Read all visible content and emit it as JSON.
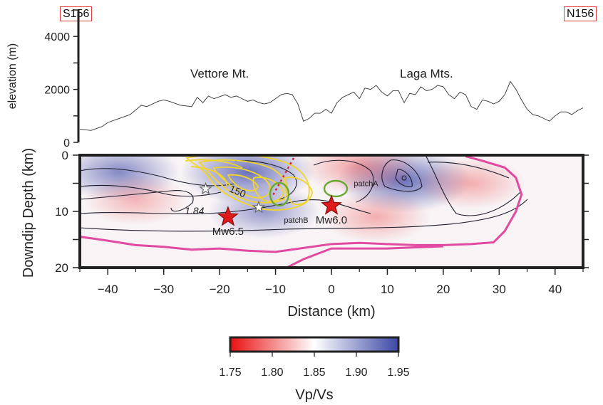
{
  "section": {
    "left_label": "S156",
    "right_label": "N156"
  },
  "chart_data": [
    {
      "type": "line",
      "ylabel": "elevation (m)",
      "ylim": [
        0,
        5000
      ],
      "xlim": [
        -45,
        45
      ],
      "yticks": [
        0,
        2000,
        4000
      ],
      "grid": false,
      "annotations": [
        {
          "text": "Vettore Mt.",
          "x": -20
        },
        {
          "text": "Laga Mts.",
          "x": 17
        }
      ],
      "x": [
        -45,
        -43,
        -41,
        -40,
        -38,
        -36,
        -34,
        -33,
        -31,
        -30,
        -29,
        -27,
        -25,
        -24,
        -23,
        -22,
        -21,
        -19,
        -18,
        -17,
        -16,
        -15,
        -14,
        -13,
        -12,
        -11,
        -9,
        -8,
        -7,
        -6,
        -5,
        -4,
        -3,
        -2,
        -1,
        0,
        1,
        2,
        3,
        4,
        5,
        6,
        7,
        8,
        9,
        10,
        11,
        12,
        13,
        14,
        15,
        16,
        17,
        18,
        19,
        20,
        21,
        22,
        23,
        24,
        25,
        26,
        27,
        28,
        29,
        30,
        31,
        32,
        33,
        34,
        35,
        36,
        37,
        38,
        39,
        40,
        41,
        42,
        43,
        44,
        45
      ],
      "y": [
        500,
        450,
        600,
        750,
        900,
        1050,
        1400,
        1350,
        1550,
        1600,
        1550,
        1400,
        1350,
        1700,
        1500,
        1750,
        1650,
        1800,
        1700,
        1750,
        1650,
        1550,
        1600,
        1500,
        1450,
        1500,
        1800,
        1850,
        1800,
        1450,
        800,
        900,
        1100,
        1100,
        1250,
        1100,
        1500,
        1700,
        1800,
        1900,
        1650,
        2050,
        2000,
        2150,
        1900,
        1750,
        1950,
        1950,
        1500,
        1850,
        1800,
        2100,
        1950,
        2000,
        2150,
        2100,
        1800,
        1650,
        1900,
        1800,
        1350,
        1250,
        1600,
        1550,
        1450,
        1550,
        1800,
        2300,
        2000,
        1600,
        1250,
        1050,
        1000,
        900,
        800,
        1000,
        1150,
        1150,
        1050,
        1200,
        1300
      ]
    },
    {
      "type": "heatmap",
      "xlabel": "Distance (km)",
      "ylabel": "Downdip Depth (km)",
      "xlim": [
        -45,
        45
      ],
      "ylim": [
        20,
        0
      ],
      "xticks": [
        -40,
        -30,
        -20,
        -10,
        0,
        10,
        20,
        30,
        40
      ],
      "yticks": [
        0,
        10,
        20
      ],
      "grid": false,
      "colorbar": {
        "label": "Vp/Vs",
        "min": 1.75,
        "max": 1.95,
        "ticks": [
          "1.75",
          "1.80",
          "1.85",
          "1.90",
          "1.95"
        ],
        "colors": [
          "#e81010",
          "#ffffff",
          "#3c47a6"
        ]
      },
      "vp_vs_anomalies": [
        {
          "x": -15,
          "y": 3,
          "value": 1.93
        },
        {
          "x": -38,
          "y": 3,
          "value": 1.9
        },
        {
          "x": 13,
          "y": 4.5,
          "value": 1.93
        },
        {
          "x": -35,
          "y": 8,
          "value": 1.84
        },
        {
          "x": 5,
          "y": 2,
          "value": 1.81
        },
        {
          "x": 25,
          "y": 5,
          "value": 1.83
        },
        {
          "x": 8,
          "y": 11,
          "value": 1.83
        },
        {
          "x": -12,
          "y": 10,
          "value": 1.88
        }
      ],
      "contour_labels": [
        {
          "text": "1.84",
          "x": -24.5,
          "y": 10.5
        },
        {
          "text": "150",
          "x": -17,
          "y": 7
        }
      ],
      "patches": [
        {
          "text": "patchA",
          "x": 4,
          "y": 5.5
        },
        {
          "text": "patchB",
          "x": -8.5,
          "y": 12
        }
      ],
      "events": [
        {
          "text": "Mw6.5",
          "x": -18.5,
          "y": 11
        },
        {
          "text": "Mw6.0",
          "x": 0,
          "y": 9
        }
      ],
      "aftershocks": [
        {
          "x": -22.5,
          "y": 6
        },
        {
          "x": -13,
          "y": 9.3
        }
      ],
      "pink_contour": [
        [
          -45,
          14.5
        ],
        [
          -40,
          15.2
        ],
        [
          -35,
          16
        ],
        [
          -30,
          16.3
        ],
        [
          -25,
          16.8
        ],
        [
          -20,
          16.6
        ],
        [
          -15,
          17
        ],
        [
          -10,
          17.2
        ],
        [
          -5,
          16.5
        ],
        [
          0,
          15.8
        ],
        [
          5,
          15.6
        ],
        [
          10,
          15.8
        ],
        [
          15,
          16
        ],
        [
          20,
          16
        ],
        [
          25,
          15.8
        ],
        [
          29,
          15.5
        ],
        [
          31,
          13.5
        ],
        [
          33,
          10
        ],
        [
          34,
          7
        ],
        [
          33,
          4
        ],
        [
          31,
          2.2
        ],
        [
          27,
          1
        ],
        [
          24,
          0.2
        ]
      ],
      "pink_contour_tail": [
        [
          -10,
          21
        ],
        [
          -5,
          18.5
        ],
        [
          0,
          16.6
        ],
        [
          5,
          16.6
        ],
        [
          10,
          16.6
        ],
        [
          15,
          16.4
        ],
        [
          20,
          16.2
        ]
      ]
    }
  ]
}
